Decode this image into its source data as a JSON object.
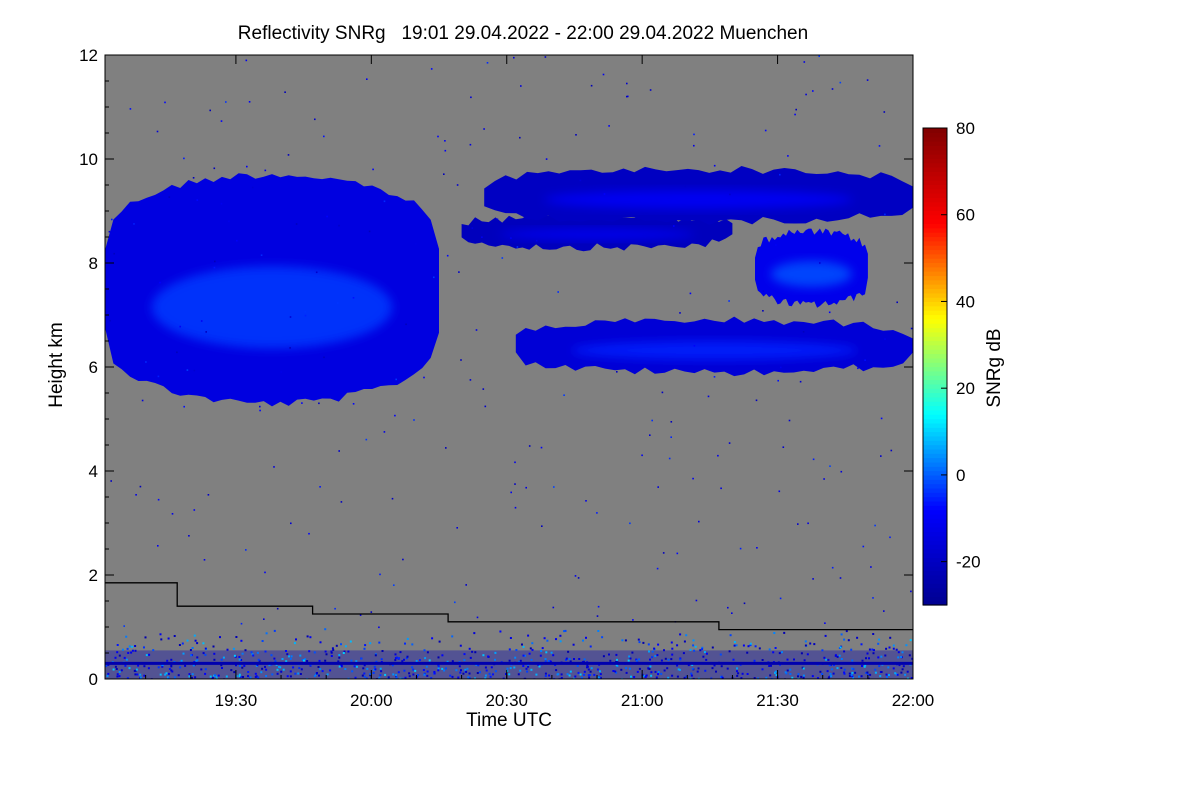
{
  "chart_data": {
    "type": "heatmap",
    "title": "Reflectivity SNRg   19:01 29.04.2022 - 22:00 29.04.2022 Muenchen",
    "xlabel": "Time UTC",
    "ylabel": "Height km",
    "x_range_utc": [
      "19:01",
      "22:00"
    ],
    "x_tick_labels": [
      "19:30",
      "20:00",
      "20:30",
      "21:00",
      "21:30",
      "22:00"
    ],
    "ylim": [
      0,
      12
    ],
    "y_ticks": [
      0,
      2,
      4,
      6,
      8,
      10,
      12
    ],
    "background_color": "#808080",
    "colorbar": {
      "label": "SNRg dB",
      "range": [
        -30,
        80
      ],
      "ticks": [
        -20,
        0,
        20,
        40,
        60,
        80
      ],
      "colors": [
        "#00008f",
        "#0000ff",
        "#00ffff",
        "#ffff00",
        "#ff0000",
        "#800000"
      ]
    },
    "cloud_layers": [
      {
        "start": "19:01",
        "end": "20:15",
        "base_km": 5.3,
        "top_km": 9.7,
        "snr_db": -8
      },
      {
        "start": "20:20",
        "end": "21:20",
        "base_km": 8.3,
        "top_km": 8.9,
        "snr_db": -15
      },
      {
        "start": "20:25",
        "end": "22:00",
        "base_km": 8.8,
        "top_km": 9.8,
        "snr_db": -14
      },
      {
        "start": "20:32",
        "end": "22:00",
        "base_km": 5.9,
        "top_km": 6.9,
        "snr_db": -10
      },
      {
        "start": "21:25",
        "end": "21:50",
        "base_km": 7.2,
        "top_km": 8.6,
        "snr_db": -6
      }
    ],
    "boundary_layer_km": [
      {
        "start": "19:01",
        "end": "19:17",
        "height": 1.85
      },
      {
        "start": "19:17",
        "end": "19:47",
        "height": 1.4
      },
      {
        "start": "19:47",
        "end": "20:17",
        "height": 1.25
      },
      {
        "start": "20:17",
        "end": "21:17",
        "height": 1.1
      },
      {
        "start": "21:17",
        "end": "22:00",
        "height": 0.95
      }
    ],
    "surface_band_km": 0.3
  }
}
